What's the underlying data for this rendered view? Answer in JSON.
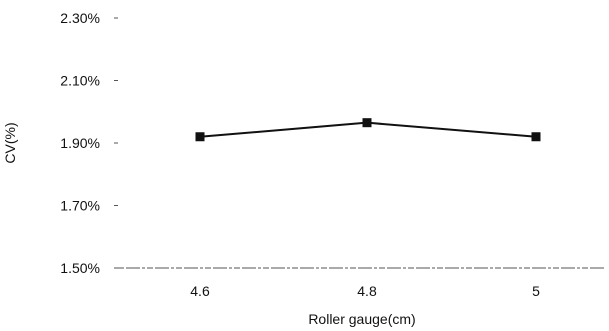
{
  "chart_data": {
    "type": "line",
    "title": "",
    "xlabel": "Roller gauge(cm)",
    "ylabel": "CV(%)",
    "categories": [
      "4.6",
      "4.8",
      "5"
    ],
    "series": [
      {
        "values": [
          1.92,
          1.965,
          1.92
        ]
      }
    ],
    "y_ticks": [
      "2.30%",
      "2.10%",
      "1.90%",
      "1.70%",
      "1.50%"
    ],
    "y_tick_values": [
      2.3,
      2.1,
      1.9,
      1.7,
      1.5
    ],
    "ylim": [
      1.5,
      2.3
    ],
    "grid": false,
    "legend": "none",
    "marker": "square",
    "colors": {
      "line": "#111111",
      "axis": "#555555"
    }
  }
}
